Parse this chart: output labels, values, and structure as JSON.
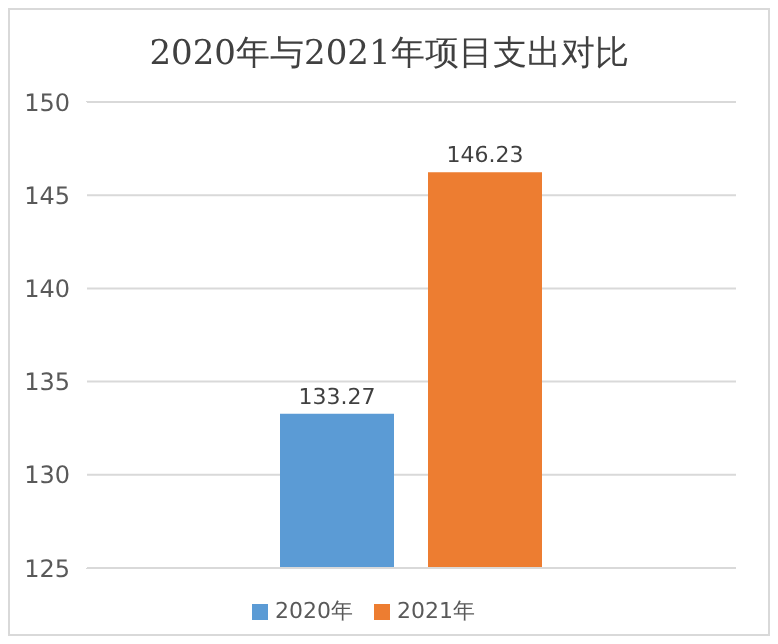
{
  "chart_data": {
    "type": "bar",
    "title": "2020年与2021年项目支出对比",
    "categories": [
      null
    ],
    "series": [
      {
        "name": "2020年",
        "color": "#5b9bd5",
        "values": [
          133.27
        ]
      },
      {
        "name": "2021年",
        "color": "#ed7d31",
        "values": [
          146.23
        ]
      }
    ],
    "ylim": [
      125,
      150
    ],
    "yticks": [
      125,
      130,
      135,
      140,
      145,
      150
    ],
    "grid": "y",
    "legend": "bottom",
    "data_labels": true
  }
}
